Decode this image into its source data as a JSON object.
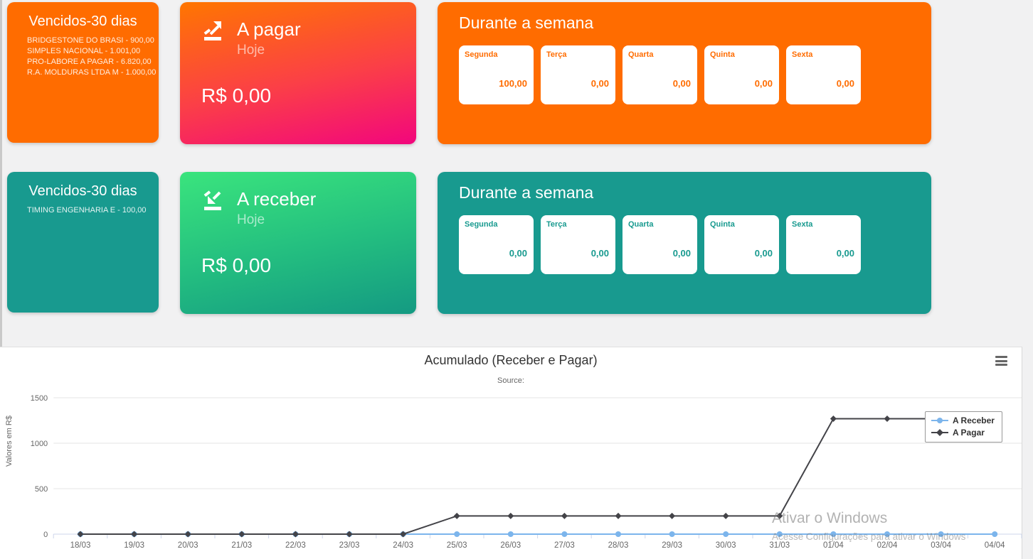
{
  "cards": {
    "vencidos_pagar": {
      "title": "Vencidos-30 dias",
      "items": [
        "BRIDGESTONE DO BRASI - 900,00",
        "SIMPLES NACIONAL - 1.001,00",
        "PRO-LABORE A PAGAR - 6.820,00",
        "R.A. MOLDURAS LTDA M - 1.000,00"
      ],
      "color": "#ff6c00"
    },
    "a_pagar": {
      "title": "A pagar",
      "subtitle": "Hoje",
      "amount": "R$ 0,00",
      "gradient_top": "#ff7600",
      "gradient_bottom": "#f2067d"
    },
    "semana_pagar": {
      "title": "Durante a semana",
      "days": [
        {
          "label": "Segunda",
          "value": "100,00"
        },
        {
          "label": "Terça",
          "value": "0,00"
        },
        {
          "label": "Quarta",
          "value": "0,00"
        },
        {
          "label": "Quinta",
          "value": "0,00"
        },
        {
          "label": "Sexta",
          "value": "0,00"
        }
      ]
    },
    "vencidos_receber": {
      "title": "Vencidos-30 dias",
      "items": [
        "TIMING ENGENHARIA E - 100,00"
      ],
      "color": "#189a8f"
    },
    "a_receber": {
      "title": "A receber",
      "subtitle": "Hoje",
      "amount": "R$ 0,00",
      "gradient_top": "#3ae47d",
      "gradient_bottom": "#149a82"
    },
    "semana_receber": {
      "title": "Durante a semana",
      "days": [
        {
          "label": "Segunda",
          "value": "0,00"
        },
        {
          "label": "Terça",
          "value": "0,00"
        },
        {
          "label": "Quarta",
          "value": "0,00"
        },
        {
          "label": "Quinta",
          "value": "0,00"
        },
        {
          "label": "Sexta",
          "value": "0,00"
        }
      ]
    }
  },
  "chart_data": {
    "type": "line",
    "title": "Acumulado (Receber e Pagar)",
    "subtitle": "Source:",
    "ylabel": "Valores em R$",
    "ylim": [
      0,
      1500
    ],
    "yticks": [
      0,
      500,
      1000,
      1500
    ],
    "grid": true,
    "legend_position": "right",
    "categories": [
      "18/03",
      "19/03",
      "20/03",
      "21/03",
      "22/03",
      "23/03",
      "24/03",
      "25/03",
      "26/03",
      "27/03",
      "28/03",
      "29/03",
      "30/03",
      "31/03",
      "01/04",
      "02/04",
      "03/04",
      "04/04"
    ],
    "series": [
      {
        "name": "A Receber",
        "color": "#7cb5ec",
        "marker": "circle",
        "values": [
          0,
          0,
          0,
          0,
          0,
          0,
          0,
          0,
          0,
          0,
          0,
          0,
          0,
          0,
          0,
          0,
          0,
          0
        ]
      },
      {
        "name": "A Pagar",
        "color": "#434348",
        "marker": "diamond",
        "values": [
          0,
          0,
          0,
          0,
          0,
          0,
          0,
          200,
          200,
          200,
          200,
          200,
          200,
          200,
          1270,
          1270,
          1270,
          1270
        ]
      }
    ]
  },
  "watermark": {
    "line1": "Ativar o Windows",
    "line2": "Acesse Configurações para ativar o Windows"
  }
}
